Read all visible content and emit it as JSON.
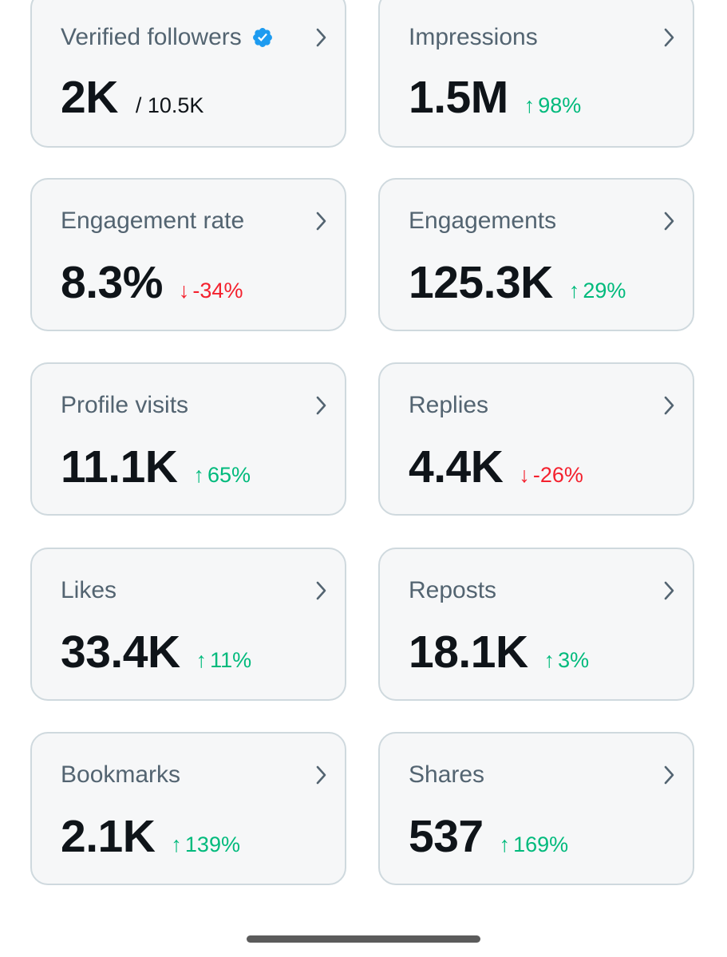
{
  "colors": {
    "card_background": "#f6f7f8",
    "card_border": "#cfd9de",
    "title_text": "#536471",
    "value_text": "#0f1419",
    "positive": "#00ba7c",
    "negative": "#f4212e",
    "verified_badge": "#1d9bf0"
  },
  "cards": [
    {
      "title": "Verified followers",
      "value": "2K",
      "sub": "/ 10.5K",
      "icon": "verified-badge-icon"
    },
    {
      "title": "Impressions",
      "value": "1.5M",
      "change_arrow": "↑",
      "change": "98%",
      "direction": "up"
    },
    {
      "title": "Engagement rate",
      "value": "8.3%",
      "change_arrow": "↓",
      "change": "-34%",
      "direction": "down"
    },
    {
      "title": "Engagements",
      "value": "125.3K",
      "change_arrow": "↑",
      "change": "29%",
      "direction": "up"
    },
    {
      "title": "Profile visits",
      "value": "11.1K",
      "change_arrow": "↑",
      "change": "65%",
      "direction": "up"
    },
    {
      "title": "Replies",
      "value": "4.4K",
      "change_arrow": "↓",
      "change": "-26%",
      "direction": "down"
    },
    {
      "title": "Likes",
      "value": "33.4K",
      "change_arrow": "↑",
      "change": "11%",
      "direction": "up"
    },
    {
      "title": "Reposts",
      "value": "18.1K",
      "change_arrow": "↑",
      "change": "3%",
      "direction": "up"
    },
    {
      "title": "Bookmarks",
      "value": "2.1K",
      "change_arrow": "↑",
      "change": "139%",
      "direction": "up"
    },
    {
      "title": "Shares",
      "value": "537",
      "change_arrow": "↑",
      "change": "169%",
      "direction": "up"
    }
  ],
  "icons": {
    "chevron": "chevron-right-icon",
    "verified": "verified-badge-icon"
  }
}
